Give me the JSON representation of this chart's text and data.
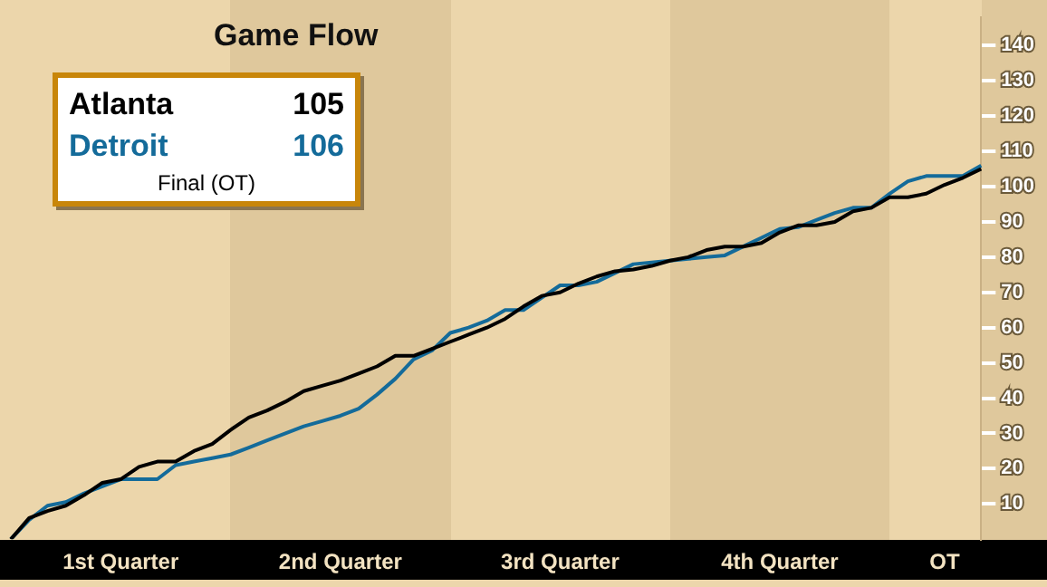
{
  "chart_data": {
    "type": "line",
    "title": "Game Flow",
    "annotations": [
      "105",
      "106",
      "Final (OT)"
    ],
    "categories": [
      null,
      null,
      null,
      null,
      null,
      null,
      "1st Quarter",
      null,
      null,
      null,
      null,
      null,
      null,
      null,
      null,
      null,
      null,
      null,
      "2nd Quarter",
      null,
      null,
      null,
      null,
      null,
      null,
      null,
      null,
      null,
      null,
      null,
      "3rd Quarter",
      null,
      null,
      null,
      null,
      null,
      null,
      null,
      null,
      null,
      null,
      null,
      "4th Quarter",
      null,
      null,
      null,
      null,
      null,
      null,
      null,
      null,
      "OT",
      null,
      null
    ],
    "series": [
      {
        "name": "Atlanta",
        "color": "#000000",
        "values": [
          0,
          6,
          8,
          9.5,
          12.5,
          16,
          17,
          20.5,
          22,
          22,
          25,
          27,
          31,
          34.5,
          36.5,
          39,
          42,
          43.5,
          45,
          47,
          49,
          52,
          52,
          54,
          56,
          58,
          60,
          62.5,
          66,
          69,
          70,
          72.5,
          74.5,
          76,
          76.5,
          77.5,
          79,
          80,
          82,
          83,
          83,
          84,
          87,
          89,
          89,
          90,
          93,
          94,
          97,
          97,
          98,
          100.5,
          102.5,
          105
        ]
      },
      {
        "name": "Detroit",
        "color": "#146b9a",
        "values": [
          0,
          5.5,
          9.5,
          10.5,
          13,
          15,
          17,
          17,
          17,
          21,
          22,
          23,
          24,
          26,
          28,
          30,
          32,
          33.5,
          35,
          37,
          41,
          45.5,
          51,
          53.5,
          58.5,
          60,
          62,
          65,
          65,
          68.5,
          72,
          72,
          73,
          75.5,
          78,
          78.5,
          79,
          79.5,
          80,
          80.5,
          83,
          85.5,
          88,
          88.5,
          90.5,
          92.5,
          94,
          94,
          98,
          101.5,
          103,
          103,
          103,
          106
        ]
      }
    ],
    "ylim": [
      0,
      148
    ],
    "yticks": [
      10,
      20,
      30,
      40,
      50,
      60,
      70,
      80,
      90,
      100,
      110,
      120,
      130,
      140
    ],
    "grid": false,
    "marker": "none",
    "line_style": "solid"
  }
}
